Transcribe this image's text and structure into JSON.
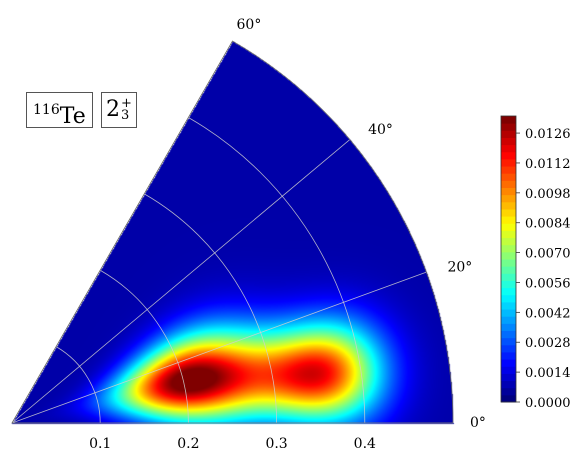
{
  "labels": {
    "nucleus_mass": "116",
    "nucleus_symbol": "Te",
    "state_base": "2",
    "state_sup": "+",
    "state_sub": "3"
  },
  "chart_data": {
    "type": "heatmap",
    "coordinate_system": "polar (beta-gamma sector)",
    "title": "",
    "radial_axis": {
      "label": "",
      "range": [
        0,
        0.5
      ],
      "ticks": [
        "0.1",
        "0.2",
        "0.3",
        "0.4"
      ]
    },
    "angular_axis": {
      "label": "",
      "range_deg": [
        0,
        60
      ],
      "ticks": [
        "0°",
        "20°",
        "40°",
        "60°"
      ]
    },
    "grid": true,
    "colormap": "jet",
    "colorbar": {
      "range": [
        0,
        0.0134
      ],
      "ticks": [
        "0.0000",
        "0.0014",
        "0.0028",
        "0.0042",
        "0.0056",
        "0.0070",
        "0.0084",
        "0.0098",
        "0.0112",
        "0.0126"
      ],
      "placement": "right"
    },
    "peaks": [
      {
        "beta": 0.2,
        "gamma_deg": 14,
        "value": 0.0134,
        "sigma_beta": 0.055,
        "sigma_gamma_deg": 9
      },
      {
        "beta": 0.36,
        "gamma_deg": 9,
        "value": 0.01,
        "sigma_beta": 0.045,
        "sigma_gamma_deg": 6
      },
      {
        "beta": 0.29,
        "gamma_deg": 11,
        "value": 0.005,
        "sigma_beta": 0.05,
        "sigma_gamma_deg": 7
      }
    ]
  }
}
